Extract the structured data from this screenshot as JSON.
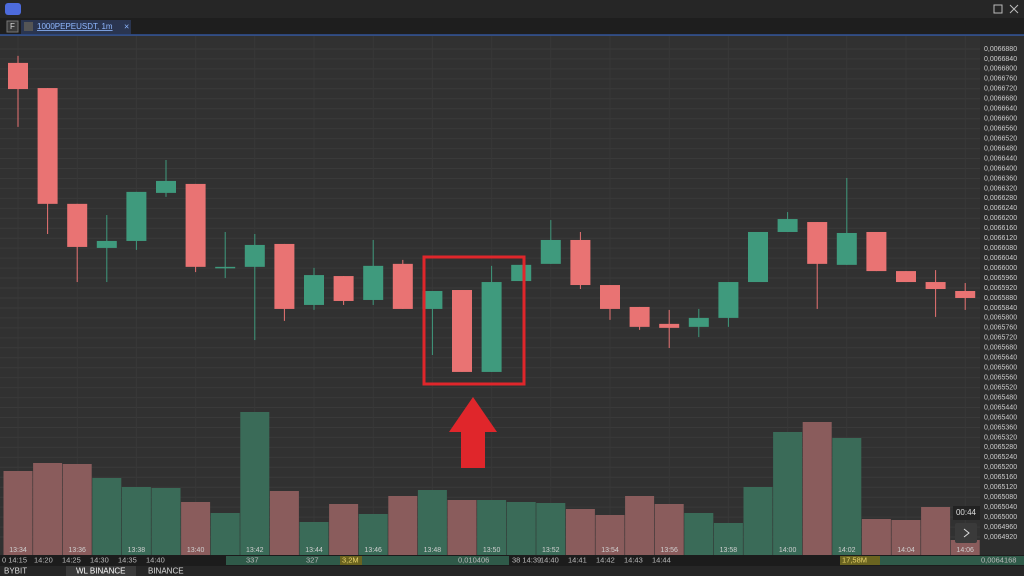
{
  "tab": {
    "badge": "F",
    "title": "1000PEPEUSDT, 1m"
  },
  "chart_data": {
    "type": "candlestick",
    "categories": [
      "13:34",
      null,
      "13:36",
      null,
      "13:38",
      null,
      "13:40",
      null,
      "13:42",
      null,
      "13:44",
      null,
      "13:46",
      null,
      "13:48",
      null,
      "13:50",
      null,
      "13:52",
      null,
      "13:54",
      null,
      "13:56",
      null,
      "13:58",
      null,
      "14:00",
      null,
      "14:02",
      null,
      "14:04",
      null,
      "14:06"
    ],
    "open": [
      0.0066824,
      0.0066723,
      0.0066258,
      0.0066081,
      0.0066109,
      0.0066302,
      0.0066338,
      0.0066005,
      0.0066005,
      0.0066097,
      0.0065852,
      0.0065968,
      0.0065872,
      0.0066017,
      0.0065836,
      0.0065912,
      0.0065583,
      0.0065948,
      0.0066017,
      0.0066113,
      0.0065932,
      0.0065844,
      0.0065776,
      0.0065764,
      0.00658,
      0.0065944,
      0.0066145,
      0.0066185,
      0.0066013,
      0.0066145,
      0.0065988,
      0.0065944,
      0.0065908
    ],
    "high": [
      0.0066852,
      0.0066723,
      0.0066258,
      0.0066213,
      0.0066306,
      0.0066434,
      0.0066338,
      0.0066145,
      0.0066137,
      0.0066097,
      0.0066001,
      0.0065968,
      0.0066113,
      0.0066033,
      0.0065908,
      0.0065912,
      0.0066009,
      0.0066013,
      0.0066193,
      0.0066145,
      0.0065932,
      0.0065844,
      0.0065832,
      0.0065836,
      0.0065944,
      0.0066145,
      0.0066225,
      0.0066185,
      0.0066362,
      0.0066145,
      0.0065988,
      0.0065992,
      0.006594
    ],
    "low": [
      0.0066567,
      0.0066137,
      0.0065944,
      0.0065944,
      0.0066073,
      0.0066286,
      0.0065984,
      0.006596,
      0.0065711,
      0.0065788,
      0.0065832,
      0.0065852,
      0.0065852,
      0.0065836,
      0.0065651,
      0.0065583,
      0.0065583,
      0.0065948,
      0.0066017,
      0.0065916,
      0.0065792,
      0.0065752,
      0.0065679,
      0.0065723,
      0.0065764,
      0.0065944,
      0.0066145,
      0.0065836,
      0.0066013,
      0.0065988,
      0.0065944,
      0.0065804,
      0.0065832
    ],
    "close": [
      0.0066719,
      0.0066258,
      0.0066085,
      0.0066109,
      0.0066306,
      0.006635,
      0.0066005,
      0.0066005,
      0.0066093,
      0.0065836,
      0.0065972,
      0.0065868,
      0.0066009,
      0.0065836,
      0.0065908,
      0.0065583,
      0.0065944,
      0.0066013,
      0.0066113,
      0.0065932,
      0.0065836,
      0.0065764,
      0.006576,
      0.00658,
      0.0065944,
      0.0066145,
      0.0066197,
      0.0066017,
      0.0066141,
      0.0065988,
      0.0065944,
      0.0065916,
      0.006588
    ],
    "volume": [
      84,
      92,
      91,
      77,
      68,
      67,
      53,
      42,
      143,
      64,
      33,
      51,
      41,
      59,
      65,
      55,
      55,
      53,
      52,
      46,
      40,
      59,
      51,
      42,
      32,
      68,
      123,
      133,
      117,
      36,
      35,
      48,
      15
    ],
    "up_color": "#3f9a7d",
    "down_color": "#e97373",
    "volume_up_color": "#3a6b58",
    "volume_down_color": "#8a5c5c",
    "ylim": [
      0.0064888,
      0.0066916
    ],
    "yticks": [
      {
        "value": 0.006688,
        "label": "0,0066880"
      },
      {
        "value": 0.006684,
        "label": "0,0066840"
      },
      {
        "value": 0.00668,
        "label": "0,0066800"
      },
      {
        "value": 0.006676,
        "label": "0,0066760"
      },
      {
        "value": 0.006672,
        "label": "0,0066720"
      },
      {
        "value": 0.006668,
        "label": "0,0066680"
      },
      {
        "value": 0.006664,
        "label": "0,0066640"
      },
      {
        "value": 0.00666,
        "label": "0,0066600"
      },
      {
        "value": 0.006656,
        "label": "0,0066560"
      },
      {
        "value": 0.006652,
        "label": "0,0066520"
      },
      {
        "value": 0.006648,
        "label": "0,0066480"
      },
      {
        "value": 0.006644,
        "label": "0,0066440"
      },
      {
        "value": 0.00664,
        "label": "0,0066400"
      },
      {
        "value": 0.006636,
        "label": "0,0066360"
      },
      {
        "value": 0.006632,
        "label": "0,0066320"
      },
      {
        "value": 0.006628,
        "label": "0,0066280"
      },
      {
        "value": 0.006624,
        "label": "0,0066240"
      },
      {
        "value": 0.00662,
        "label": "0,0066200"
      },
      {
        "value": 0.006616,
        "label": "0,0066160"
      },
      {
        "value": 0.006612,
        "label": "0,0066120"
      },
      {
        "value": 0.006608,
        "label": "0,0066080"
      },
      {
        "value": 0.006604,
        "label": "0,0066040"
      },
      {
        "value": 0.0066,
        "label": "0,0066000"
      },
      {
        "value": 0.006596,
        "label": "0,0065960"
      },
      {
        "value": 0.006592,
        "label": "0,0065920"
      },
      {
        "value": 0.006588,
        "label": "0,0065880"
      },
      {
        "value": 0.006584,
        "label": "0,0065840"
      },
      {
        "value": 0.00658,
        "label": "0,0065800"
      },
      {
        "value": 0.006576,
        "label": "0,0065760"
      },
      {
        "value": 0.006572,
        "label": "0,0065720"
      },
      {
        "value": 0.006568,
        "label": "0,0065680"
      },
      {
        "value": 0.006564,
        "label": "0,0065640"
      },
      {
        "value": 0.00656,
        "label": "0,0065600"
      },
      {
        "value": 0.006556,
        "label": "0,0065560"
      },
      {
        "value": 0.006552,
        "label": "0,0065520"
      },
      {
        "value": 0.006548,
        "label": "0,0065480"
      },
      {
        "value": 0.006544,
        "label": "0,0065440"
      },
      {
        "value": 0.00654,
        "label": "0,0065400"
      },
      {
        "value": 0.006536,
        "label": "0,0065360"
      },
      {
        "value": 0.006532,
        "label": "0,0065320"
      },
      {
        "value": 0.006528,
        "label": "0,0065280"
      },
      {
        "value": 0.006524,
        "label": "0,0065240"
      },
      {
        "value": 0.00652,
        "label": "0,0065200"
      },
      {
        "value": 0.006516,
        "label": "0,0065160"
      },
      {
        "value": 0.006512,
        "label": "0,0065120"
      },
      {
        "value": 0.006508,
        "label": "0,0065080"
      },
      {
        "value": 0.006504,
        "label": "0,0065040"
      },
      {
        "value": 0.0065,
        "label": "0,0065000"
      },
      {
        "value": 0.006496,
        "label": "0,0064960"
      },
      {
        "value": 0.006492,
        "label": "0,0064920"
      }
    ],
    "grid": true
  },
  "countdown": "00:44",
  "status_bar": [
    "0 14:15",
    "14:20",
    "14:25",
    "14:30",
    "14:35",
    "14:40",
    "337",
    "327",
    "3,2M",
    "0,010406",
    "38 14:39",
    "14:40",
    "14:41",
    "14:42",
    "14:43",
    "14:44",
    "17,58M",
    "0,0064168"
  ],
  "bottom_tabs": [
    "BYBIT",
    "WL BINANCE",
    "BINANCE"
  ]
}
